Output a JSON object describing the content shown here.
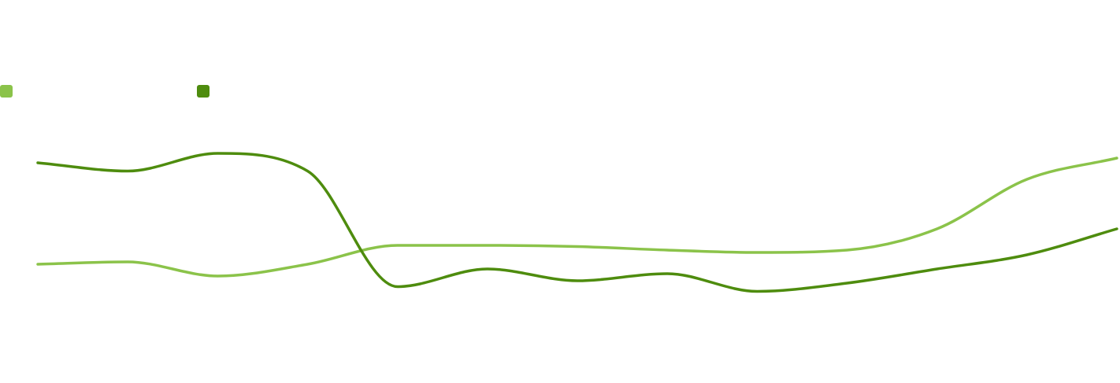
{
  "chart_data": {
    "type": "line",
    "title": "",
    "xlabel": "",
    "ylabel": "",
    "x": [
      0,
      1,
      2,
      3,
      4,
      5,
      6,
      7,
      8,
      9,
      10,
      11,
      12
    ],
    "ylim": [
      0,
      100
    ],
    "grid": false,
    "legend": "top-left",
    "series": [
      {
        "name": "",
        "color": "#8bc34a",
        "values": [
          38,
          39,
          33,
          38,
          46,
          46,
          45.5,
          44,
          43,
          44,
          53,
          74,
          83
        ]
      },
      {
        "name": "",
        "color": "#4e8c0e",
        "values": [
          81,
          77.5,
          85,
          77.5,
          28.5,
          36,
          31,
          34,
          26.5,
          30,
          36,
          42,
          53
        ]
      }
    ]
  }
}
